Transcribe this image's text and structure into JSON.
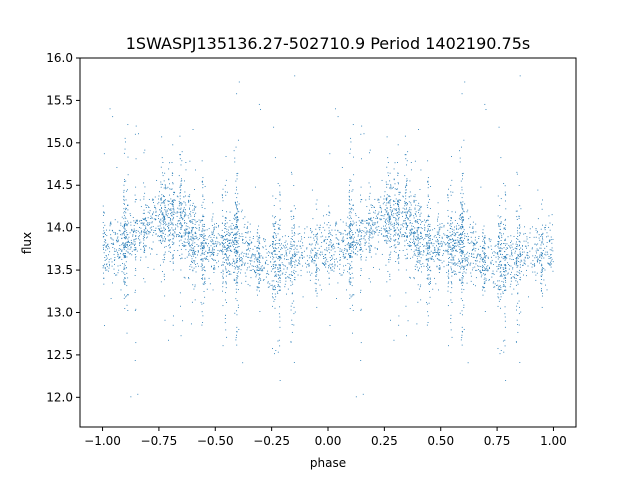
{
  "chart_data": {
    "type": "scatter",
    "title": "1SWASPJ135136.27-502710.9 Period 1402190.75s",
    "xlabel": "phase",
    "ylabel": "flux",
    "xlim": [
      -1.1,
      1.1
    ],
    "ylim": [
      11.65,
      16.0
    ],
    "xticks": [
      -1.0,
      -0.75,
      -0.5,
      -0.25,
      0.0,
      0.25,
      0.5,
      0.75,
      1.0
    ],
    "xtick_labels": [
      "−1.00",
      "−0.75",
      "−0.50",
      "−0.25",
      "0.00",
      "0.25",
      "0.50",
      "0.75",
      "1.00"
    ],
    "yticks": [
      12.0,
      12.5,
      13.0,
      13.5,
      14.0,
      14.5,
      15.0,
      15.5,
      16.0
    ],
    "ytick_labels": [
      "12.0",
      "12.5",
      "13.0",
      "13.5",
      "14.0",
      "14.5",
      "15.0",
      "15.5",
      "16.0"
    ],
    "grid": false,
    "marker_color": "#1f77b4",
    "phase_range": [
      -1.0,
      1.0
    ],
    "profile": [
      {
        "phase": 0.0,
        "flux": 13.75
      },
      {
        "phase": 0.05,
        "flux": 13.75
      },
      {
        "phase": 0.1,
        "flux": 13.85
      },
      {
        "phase": 0.15,
        "flux": 13.95
      },
      {
        "phase": 0.2,
        "flux": 14.05
      },
      {
        "phase": 0.25,
        "flux": 14.1
      },
      {
        "phase": 0.3,
        "flux": 14.1
      },
      {
        "phase": 0.35,
        "flux": 14.05
      },
      {
        "phase": 0.4,
        "flux": 13.9
      },
      {
        "phase": 0.45,
        "flux": 13.75
      },
      {
        "phase": 0.5,
        "flux": 13.75
      },
      {
        "phase": 0.55,
        "flux": 13.8
      },
      {
        "phase": 0.6,
        "flux": 13.8
      },
      {
        "phase": 0.65,
        "flux": 13.7
      },
      {
        "phase": 0.7,
        "flux": 13.65
      },
      {
        "phase": 0.75,
        "flux": 13.6
      },
      {
        "phase": 0.8,
        "flux": 13.6
      },
      {
        "phase": 0.85,
        "flux": 13.6
      },
      {
        "phase": 0.9,
        "flux": 13.65
      },
      {
        "phase": 0.95,
        "flux": 13.7
      },
      {
        "phase": 1.0,
        "flux": 13.75
      }
    ],
    "scatter_std": 0.25,
    "outlier_flux_range": [
      11.9,
      15.8
    ],
    "points_per_phase_unit": 2600
  }
}
